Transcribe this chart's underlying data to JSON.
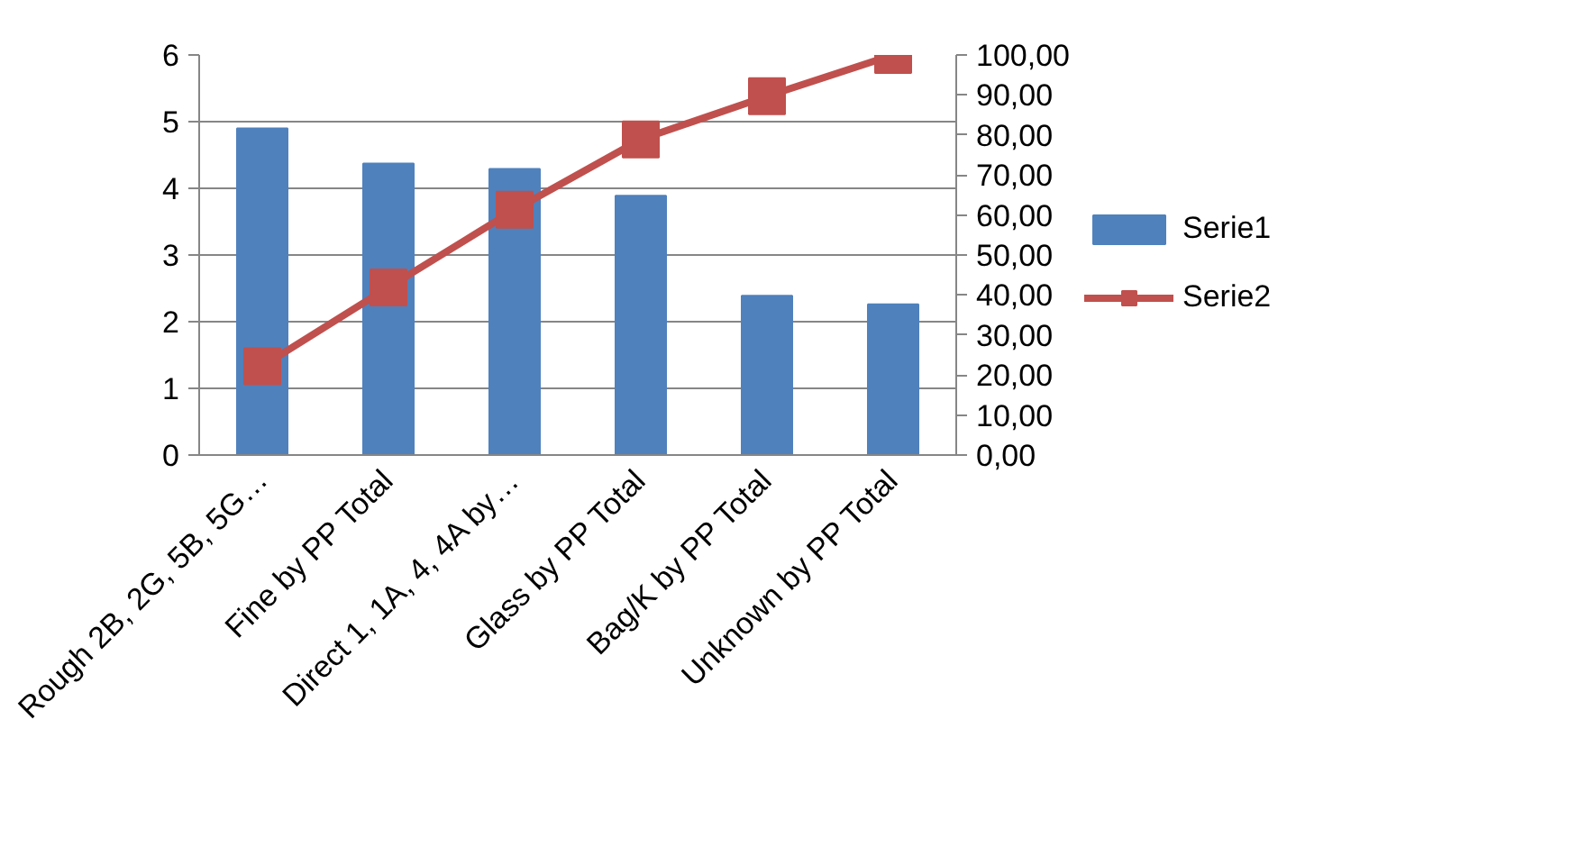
{
  "chart_data": {
    "type": "bar",
    "categories": [
      "Rough 2B, 2G, 5B, 5G…",
      "Fine by PP Total",
      "Direct 1, 1A, 4, 4A by…",
      "Glass by PP Total",
      "Bag/K by PP Total",
      "Unknown by PP Total"
    ],
    "series": [
      {
        "name": "Serie1",
        "color": "#4f81bd",
        "values": [
          4.9,
          4.37,
          4.29,
          3.89,
          2.39,
          2.26
        ]
      },
      {
        "name": "Serie2",
        "type": "line",
        "axis": "y2",
        "color": "#c0504d",
        "marker": "square",
        "values": [
          22.2,
          41.9,
          61.3,
          78.9,
          89.7,
          100
        ]
      }
    ],
    "ylim": [
      0,
      6
    ],
    "yticks": [
      0,
      1,
      2,
      3,
      4,
      5,
      6
    ],
    "y2lim": [
      0,
      100
    ],
    "y2ticks": [
      {
        "value": 0,
        "label": "0,00"
      },
      {
        "value": 10,
        "label": "10,00"
      },
      {
        "value": 20,
        "label": "20,00"
      },
      {
        "value": 30,
        "label": "30,00"
      },
      {
        "value": 40,
        "label": "40,00"
      },
      {
        "value": 50,
        "label": "50,00"
      },
      {
        "value": 60,
        "label": "60,00"
      },
      {
        "value": 70,
        "label": "70,00"
      },
      {
        "value": 80,
        "label": "80,00"
      },
      {
        "value": 90,
        "label": "90,00"
      },
      {
        "value": 100,
        "label": "100,00"
      }
    ],
    "grid": "y",
    "legend": "right"
  }
}
